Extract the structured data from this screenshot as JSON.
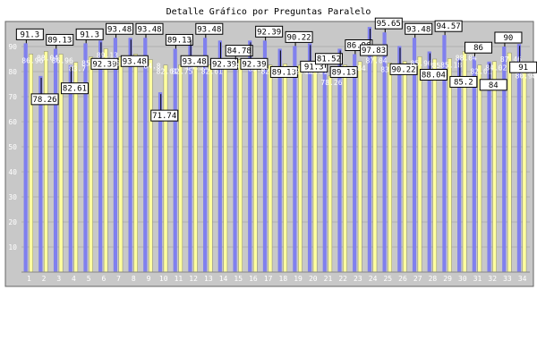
{
  "title": "Detalle Gráfico por Preguntas Paralelo",
  "chart_data": {
    "type": "bar",
    "title": "Detalle Gráfico por Preguntas Paralelo",
    "xlabel": "",
    "ylabel": "",
    "ylim": [
      0,
      100
    ],
    "yticks": [
      10,
      20,
      30,
      40,
      50,
      60,
      70,
      80,
      90
    ],
    "grid": true,
    "legend": "none",
    "categories": [
      "1",
      "2",
      "3",
      "4",
      "5",
      "6",
      "7",
      "8",
      "9",
      "10",
      "11",
      "12",
      "13",
      "14",
      "15",
      "16",
      "17",
      "18",
      "19",
      "20",
      "21",
      "22",
      "23",
      "24",
      "25",
      "26",
      "27",
      "28",
      "29",
      "30",
      "31",
      "32",
      "33",
      "34"
    ],
    "series": [
      {
        "color": "#8080ee",
        "values": [
          91.3,
          78.26,
          89.13,
          82.61,
          91.3,
          92.39,
          93.48,
          93.48,
          93.48,
          71.74,
          89.13,
          93.48,
          93.48,
          92.39,
          84.78,
          92.39,
          92.39,
          89.13,
          90.22,
          91.3,
          81.52,
          89.13,
          86.96,
          97.83,
          95.65,
          90.22,
          93.48,
          88.04,
          94.57,
          85.2,
          86.0,
          84.0,
          90.0,
          91.0
        ]
      },
      {
        "color": "#ffffa0",
        "values": [
          86.96,
          88.04,
          86.96,
          83.7,
          85.87,
          89.13,
          85.88,
          86.96,
          84.8,
          82.61,
          82.75,
          84.51,
          82.61,
          84.78,
          84.78,
          83.7,
          82.61,
          83.04,
          82.61,
          82.61,
          78.26,
          82.61,
          84.0,
          87.04,
          83.48,
          84.04,
          85.96,
          85.0,
          85.18,
          88.04,
          82.61,
          84.02,
          87.46,
          80.98
        ]
      }
    ]
  }
}
